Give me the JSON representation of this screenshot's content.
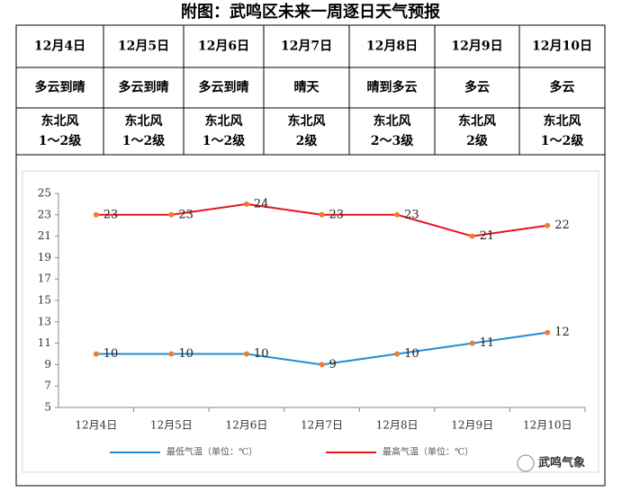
{
  "header": {
    "title": "附图：武鸣区未来一周逐日天气预报"
  },
  "table": {
    "rows": [
      [
        [
          "12月4日"
        ],
        [
          "12月5日"
        ],
        [
          "12月6日"
        ],
        [
          "12月7日"
        ],
        [
          "12月8日"
        ],
        [
          "12月9日"
        ],
        [
          "12月10日"
        ]
      ],
      [
        [
          "多云到晴"
        ],
        [
          "多云到晴"
        ],
        [
          "多云到晴"
        ],
        [
          "晴天"
        ],
        [
          "晴到多云"
        ],
        [
          "多云"
        ],
        [
          "多云"
        ]
      ],
      [
        [
          "东北风",
          "1～2级"
        ],
        [
          "东北风",
          "1～2级"
        ],
        [
          "东北风",
          "1～2级"
        ],
        [
          "东北风",
          "2级"
        ],
        [
          "东北风",
          "2～3级"
        ],
        [
          "东北风",
          "2级"
        ],
        [
          "东北风",
          "1～2级"
        ]
      ]
    ]
  },
  "chart_data": {
    "type": "line",
    "categories": [
      "12月4日",
      "12月5日",
      "12月6日",
      "12月7日",
      "12月8日",
      "12月9日",
      "12月10日"
    ],
    "series": [
      {
        "name": "最低气温（单位：℃）",
        "color": "#1f8dd6",
        "values": [
          10,
          10,
          10,
          9,
          10,
          11,
          12
        ]
      },
      {
        "name": "最高气温（单位：℃）",
        "color": "#e8141b",
        "values": [
          23,
          23,
          24,
          23,
          23,
          21,
          22
        ]
      }
    ],
    "marker_color": "#ed7d31",
    "ylim": [
      5,
      25
    ],
    "yticks": [
      5,
      7,
      9,
      11,
      13,
      15,
      17,
      19,
      21,
      23,
      25
    ],
    "grid": false,
    "legend": "bottom"
  },
  "watermark": "武鸣气象"
}
